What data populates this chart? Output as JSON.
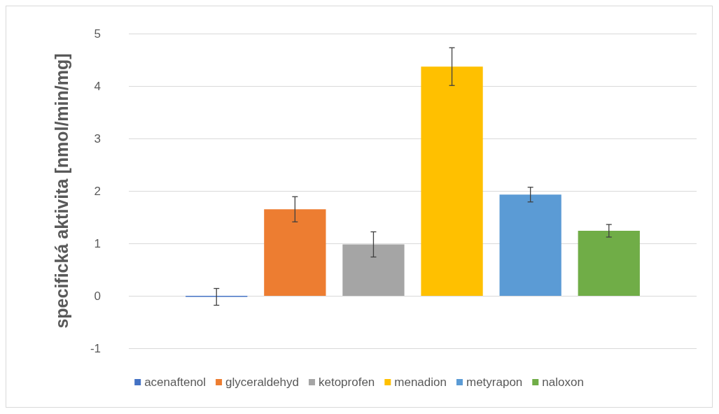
{
  "chart_data": {
    "type": "bar",
    "ylabel": "specifická aktivita [nmol/min/mg]",
    "categories": [
      null
    ],
    "series": [
      {
        "name": "acenaftenol",
        "color": "#4472c4",
        "values": [
          -0.02
        ],
        "errors": [
          0.16
        ]
      },
      {
        "name": "glyceraldehyd",
        "color": "#ed7d31",
        "values": [
          1.65
        ],
        "errors": [
          0.24
        ]
      },
      {
        "name": "ketoprofen",
        "color": "#a5a5a5",
        "values": [
          0.98
        ],
        "errors": [
          0.24
        ]
      },
      {
        "name": "menadion",
        "color": "#ffc000",
        "values": [
          4.37
        ],
        "errors": [
          0.36
        ]
      },
      {
        "name": "metyrapon",
        "color": "#5b9bd5",
        "values": [
          1.93
        ],
        "errors": [
          0.14
        ]
      },
      {
        "name": "naloxon",
        "color": "#70ad47",
        "values": [
          1.24
        ],
        "errors": [
          0.12
        ]
      }
    ],
    "ylim": [
      -1,
      5
    ],
    "yticks": [
      -1,
      0,
      1,
      2,
      3,
      4,
      5
    ],
    "grid": "y",
    "legend": "bottom",
    "tick_labels": "y"
  }
}
